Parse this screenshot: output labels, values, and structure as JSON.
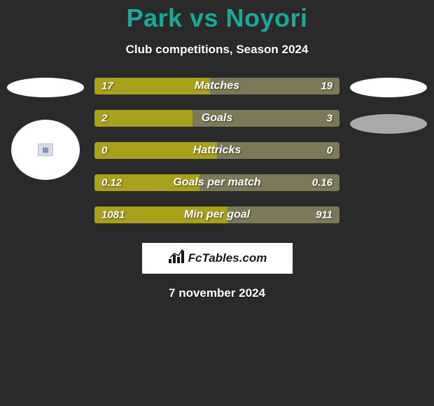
{
  "background_color": "#2a2a2a",
  "title": {
    "text": "Park vs Noyori",
    "color": "#18a99b",
    "fontsize": 36
  },
  "subtitle": {
    "text": "Club competitions, Season 2024",
    "color": "#ffffff",
    "fontsize": 17
  },
  "left_side": {
    "ellipse_color": "#ffffff",
    "circle_color": "#ffffff",
    "inner_square_bg": "#d8dde4",
    "inner_square_glyph": "▦"
  },
  "right_side": {
    "ellipse1_color": "#ffffff",
    "ellipse2_color": "#aaaaaa"
  },
  "stat_colors": {
    "left_fill": "#a8a11c",
    "right_fill": "#7c7958",
    "text": "#ffffff"
  },
  "stats": [
    {
      "label": "Matches",
      "left_value": "17",
      "right_value": "19",
      "left_pct": 47.2
    },
    {
      "label": "Goals",
      "left_value": "2",
      "right_value": "3",
      "left_pct": 40.0
    },
    {
      "label": "Hattricks",
      "left_value": "0",
      "right_value": "0",
      "left_pct": 50.0
    },
    {
      "label": "Goals per match",
      "left_value": "0.12",
      "right_value": "0.16",
      "left_pct": 42.9
    },
    {
      "label": "Min per goal",
      "left_value": "1081",
      "right_value": "911",
      "left_pct": 54.3
    }
  ],
  "brand": {
    "text": "FcTables.com",
    "bg": "#ffffff",
    "color": "#1a1a1a",
    "icon_color": "#1a1a1a"
  },
  "date": {
    "text": "7 november 2024",
    "color": "#ffffff"
  }
}
